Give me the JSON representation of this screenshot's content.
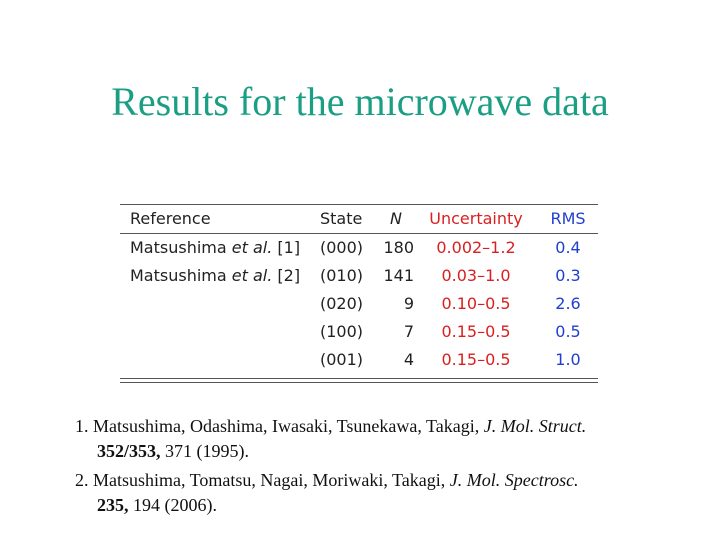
{
  "title": "Results for the microwave data",
  "table": {
    "header": {
      "reference": "Reference",
      "state": "State",
      "n": "N",
      "uncertainty": "Uncertainty",
      "rms": "RMS"
    },
    "rows": [
      {
        "reference": {
          "author": "Matsushima",
          "etal": "et al.",
          "ref": "[1]"
        },
        "state": "(000)",
        "n": "180",
        "uncertainty": "0.002–1.2",
        "rms": "0.4"
      },
      {
        "reference": {
          "author": "Matsushima",
          "etal": "et al.",
          "ref": "[2]"
        },
        "state": "(010)",
        "n": "141",
        "uncertainty": "0.03–1.0",
        "rms": "0.3"
      },
      {
        "state": "(020)",
        "n": "9",
        "uncertainty": "0.10–0.5",
        "rms": "2.6"
      },
      {
        "state": "(100)",
        "n": "7",
        "uncertainty": "0.15–0.5",
        "rms": "0.5"
      },
      {
        "state": "(001)",
        "n": "4",
        "uncertainty": "0.15–0.5",
        "rms": "1.0"
      }
    ]
  },
  "references": [
    {
      "number": "1.",
      "authors": "Matsushima, Odashima, Iwasaki, Tsunekawa, Takagi,",
      "journal": "J. Mol. Struct.",
      "volume": "352/353,",
      "rest": "371 (1995)."
    },
    {
      "number": "2.",
      "authors": "Matsushima, Tomatsu, Nagai, Moriwaki, Takagi,",
      "journal": "J. Mol. Spectrosc.",
      "volume": "235,",
      "rest": "194 (2006)."
    }
  ]
}
